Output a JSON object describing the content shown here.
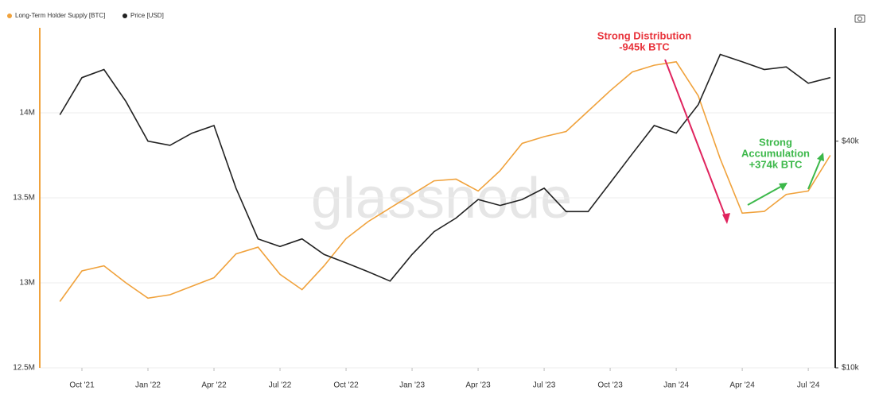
{
  "chart_data": {
    "type": "line",
    "watermark": "glassnode",
    "x": [
      "2021-09",
      "2021-10",
      "2021-11",
      "2021-12",
      "2022-01",
      "2022-02",
      "2022-03",
      "2022-04",
      "2022-05",
      "2022-06",
      "2022-07",
      "2022-08",
      "2022-09",
      "2022-10",
      "2022-11",
      "2022-12",
      "2023-01",
      "2023-02",
      "2023-03",
      "2023-04",
      "2023-05",
      "2023-06",
      "2023-07",
      "2023-08",
      "2023-09",
      "2023-10",
      "2023-11",
      "2023-12",
      "2024-01",
      "2024-02",
      "2024-03",
      "2024-04",
      "2024-05",
      "2024-06",
      "2024-07",
      "2024-08"
    ],
    "series": [
      {
        "name": "Long-Term Holder Supply [BTC]",
        "color": "#f0a23c",
        "values": [
          12.89,
          13.07,
          13.1,
          13.0,
          12.91,
          12.93,
          12.98,
          13.03,
          13.17,
          13.21,
          13.05,
          12.96,
          13.1,
          13.26,
          13.36,
          13.44,
          13.52,
          13.6,
          13.61,
          13.54,
          13.66,
          13.82,
          13.86,
          13.89,
          14.01,
          14.13,
          14.24,
          14.28,
          14.3,
          14.1,
          13.73,
          13.41,
          13.42,
          13.52,
          13.54,
          13.75
        ]
      },
      {
        "name": "Price [USD]",
        "color": "#222222",
        "axis": "y2",
        "values": [
          47000,
          59000,
          62000,
          51000,
          40000,
          39000,
          42000,
          44000,
          30000,
          22000,
          21000,
          22000,
          20000,
          19000,
          18000,
          17000,
          20000,
          23000,
          25000,
          28000,
          27000,
          28000,
          30000,
          26000,
          26000,
          31000,
          37000,
          44000,
          42000,
          50000,
          68000,
          65000,
          62000,
          63000,
          57000,
          59000
        ]
      }
    ],
    "ylim": [
      12.5,
      14.5
    ],
    "yticks": [
      {
        "value": 12.5,
        "label": "12.5M"
      },
      {
        "value": 13,
        "label": "13M"
      },
      {
        "value": 13.5,
        "label": "13.5M"
      },
      {
        "value": 14,
        "label": "14M"
      }
    ],
    "y2lim": [
      10000,
      80000
    ],
    "y2log": true,
    "y2ticks": [
      {
        "value": 10000,
        "label": "$10k"
      },
      {
        "value": 40000,
        "label": "$40k"
      }
    ],
    "xticks": [
      {
        "value": "2021-10",
        "label": "Oct '21"
      },
      {
        "value": "2022-01",
        "label": "Jan '22"
      },
      {
        "value": "2022-04",
        "label": "Apr '22"
      },
      {
        "value": "2022-07",
        "label": "Jul '22"
      },
      {
        "value": "2022-10",
        "label": "Oct '22"
      },
      {
        "value": "2023-01",
        "label": "Jan '23"
      },
      {
        "value": "2023-04",
        "label": "Apr '23"
      },
      {
        "value": "2023-07",
        "label": "Jul '23"
      },
      {
        "value": "2023-10",
        "label": "Oct '23"
      },
      {
        "value": "2024-01",
        "label": "Jan '24"
      },
      {
        "value": "2024-04",
        "label": "Apr '24"
      },
      {
        "value": "2024-07",
        "label": "Jul '24"
      }
    ],
    "grid": true,
    "annotations": [
      {
        "lines": [
          "Strong Distribution",
          "-945k BTC"
        ],
        "color": "#e8333b"
      },
      {
        "lines": [
          "Strong",
          "Accumulation",
          "+374k BTC"
        ],
        "color": "#3cb84a"
      }
    ]
  }
}
